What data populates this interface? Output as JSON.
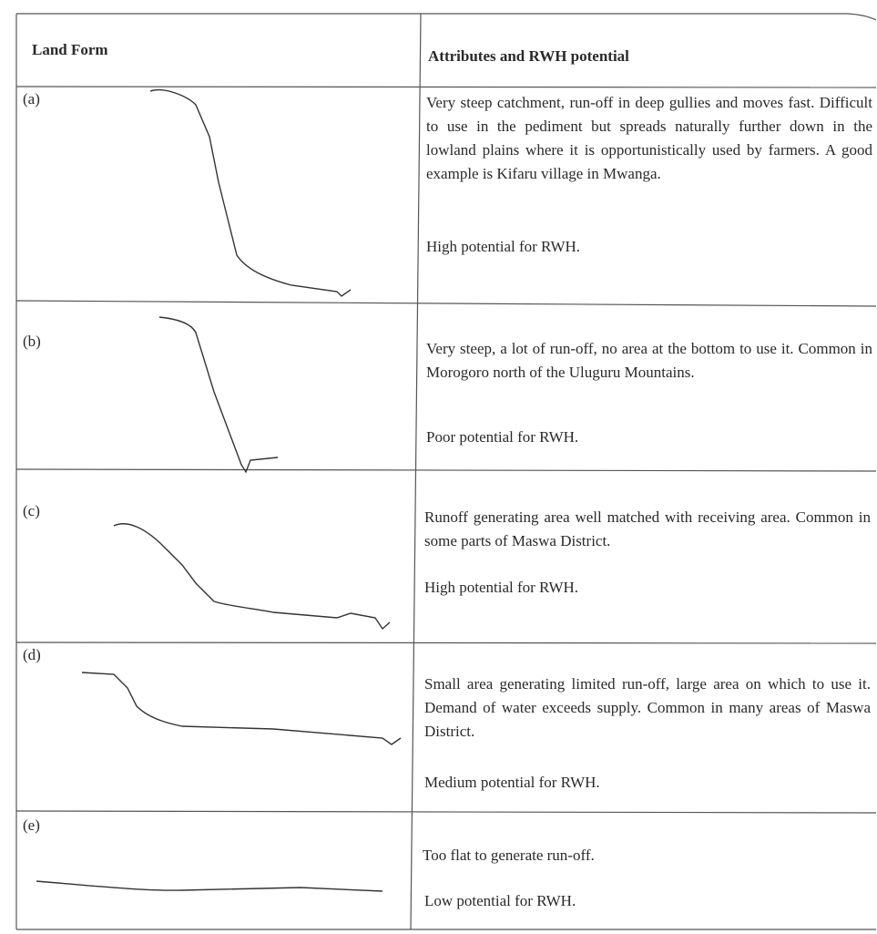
{
  "header": {
    "land_form": "Land Form",
    "attributes": "Attributes and RWH potential"
  },
  "rows": [
    {
      "label": "(a)",
      "description": "Very steep catchment, run-off in deep gullies and moves fast. Difficult to use in the pediment but spreads naturally further down in the lowland plains where it is opportunistically used by farmers. A good example is Kifaru village in Mwanga.",
      "potential": "High potential for RWH."
    },
    {
      "label": "(b)",
      "description": "Very steep, a lot of run-off, no area at the bottom to use it. Common in Morogoro north of the Uluguru Mountains.",
      "potential": "Poor potential for RWH."
    },
    {
      "label": "(c)",
      "description": "Runoff generating area well matched with receiving area. Common in some parts of Maswa District.",
      "potential": "High potential for RWH."
    },
    {
      "label": "(d)",
      "description": "Small area generating limited run-off, large area on which to use it. Demand of water exceeds supply. Common in many areas of Maswa District.",
      "potential": "Medium potential for RWH."
    },
    {
      "label": "(e)",
      "description": "Too flat to generate run-off.",
      "potential": "Low potential for RWH."
    }
  ]
}
